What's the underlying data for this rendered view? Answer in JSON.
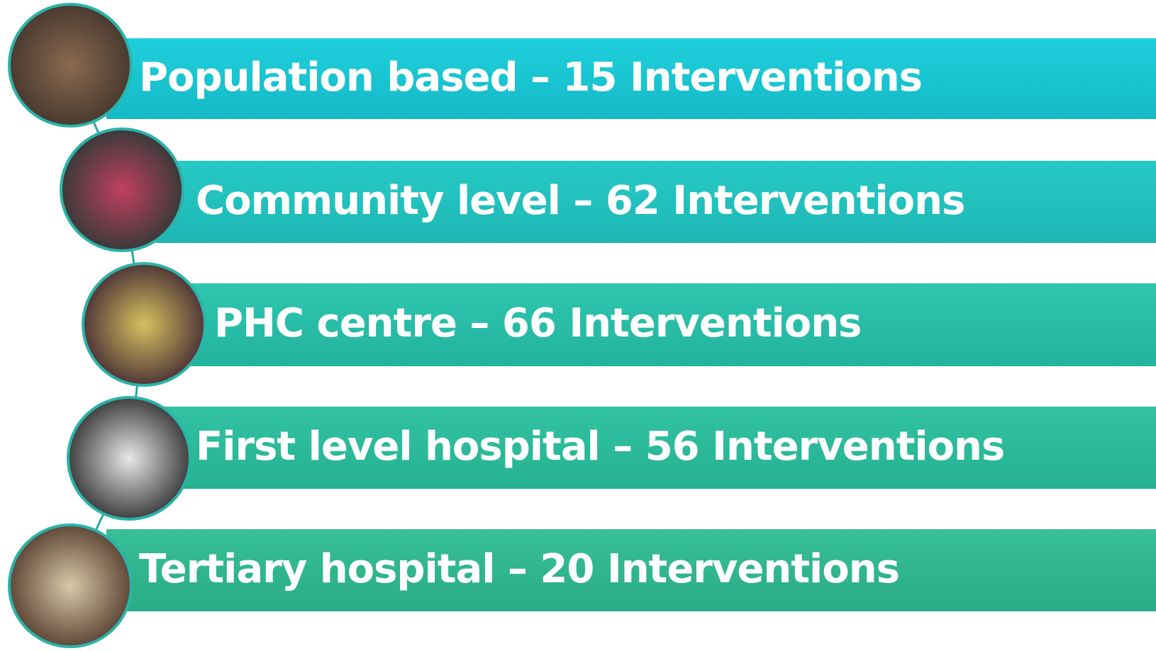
{
  "items": [
    {
      "label": "Population based – 15 Interventions"
    },
    {
      "label": "Community level – 62 Interventions"
    },
    {
      "label": "PHC centre – 66 Interventions"
    },
    {
      "label": "First level hospital – 56 Interventions"
    },
    {
      "label": "Tertiary hospital – 20 Interventions"
    }
  ]
}
